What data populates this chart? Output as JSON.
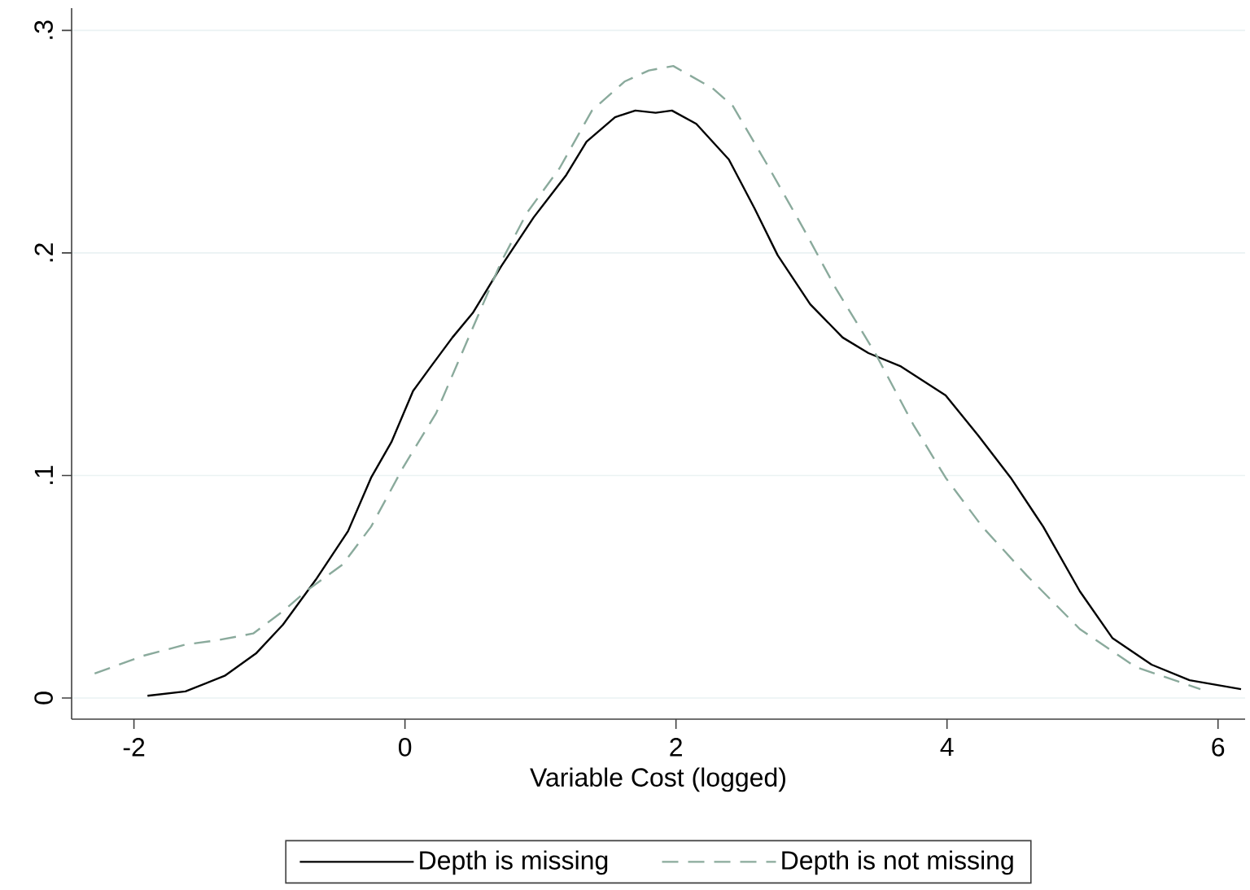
{
  "chart_data": {
    "type": "line",
    "xlabel": "Variable Cost (logged)",
    "xlim": [
      -2.46,
      6.2
    ],
    "ylim": [
      -0.0095,
      0.31
    ],
    "xticks": [
      -2,
      0,
      2,
      4,
      6
    ],
    "yticks": [
      0,
      {
        "value": 0.1,
        "label": ".1"
      },
      {
        "value": 0.2,
        "label": ".2"
      },
      {
        "value": 0.3,
        "label": ".3"
      }
    ],
    "grid": "y",
    "legend": "bottom",
    "series": [
      {
        "name": "Depth is missing",
        "color": "#000000",
        "line_style": "solid",
        "x": [
          -1.9,
          -1.62,
          -1.33,
          -1.1,
          -0.9,
          -0.66,
          -0.42,
          -0.25,
          -0.1,
          0.06,
          0.18,
          0.35,
          0.5,
          0.71,
          0.95,
          1.19,
          1.34,
          1.55,
          1.7,
          1.85,
          1.97,
          2.15,
          2.39,
          2.58,
          2.75,
          2.99,
          3.23,
          3.42,
          3.66,
          3.99,
          4.23,
          4.47,
          4.71,
          4.98,
          5.22,
          5.51,
          5.79,
          6.17
        ],
        "values": [
          0.001,
          0.003,
          0.01,
          0.02,
          0.033,
          0.053,
          0.075,
          0.099,
          0.115,
          0.138,
          0.148,
          0.162,
          0.173,
          0.194,
          0.216,
          0.235,
          0.25,
          0.261,
          0.264,
          0.263,
          0.264,
          0.258,
          0.242,
          0.22,
          0.199,
          0.177,
          0.162,
          0.155,
          0.149,
          0.136,
          0.118,
          0.099,
          0.077,
          0.048,
          0.027,
          0.015,
          0.008,
          0.004
        ]
      },
      {
        "name": "Depth is not missing",
        "color": "#8aaa9c",
        "line_style": "dashed",
        "x": [
          -2.29,
          -1.93,
          -1.62,
          -1.38,
          -1.12,
          -0.9,
          -0.73,
          -0.46,
          -0.25,
          -0.01,
          0.23,
          0.47,
          0.71,
          0.9,
          1.14,
          1.38,
          1.62,
          1.8,
          1.98,
          2.27,
          2.42,
          2.67,
          2.94,
          3.18,
          3.47,
          3.75,
          3.99,
          4.26,
          4.59,
          4.98,
          5.39,
          5.87
        ],
        "values": [
          0.011,
          0.019,
          0.024,
          0.026,
          0.029,
          0.039,
          0.048,
          0.06,
          0.077,
          0.104,
          0.128,
          0.162,
          0.196,
          0.218,
          0.238,
          0.264,
          0.277,
          0.282,
          0.284,
          0.274,
          0.266,
          0.24,
          0.211,
          0.184,
          0.155,
          0.123,
          0.099,
          0.077,
          0.055,
          0.031,
          0.014,
          0.004
        ]
      }
    ]
  }
}
